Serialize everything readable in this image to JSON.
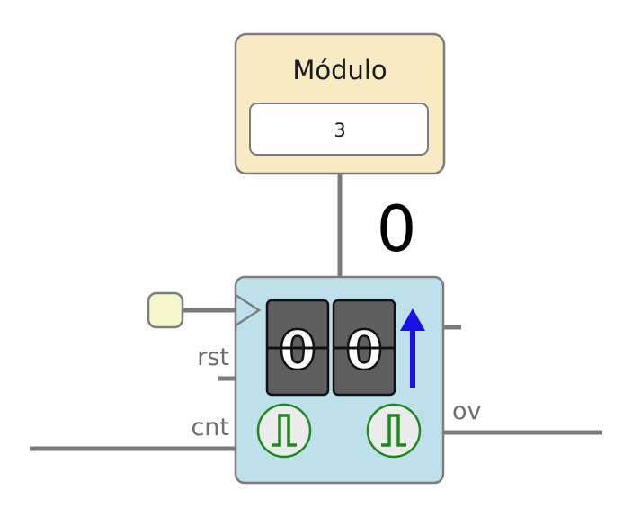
{
  "module_box": {
    "label": "Módulo",
    "value": "3",
    "fill_color": "#f8ebc4"
  },
  "count_display": "0",
  "counter": {
    "digits": [
      "0",
      "0"
    ],
    "direction": "up-arrow",
    "fill_color": "#bde0ea",
    "arrow_color": "#1a10e8",
    "pulse_color": "#1e8a1e"
  },
  "pins": {
    "rst": "rst",
    "cnt": "cnt",
    "ov": "ov"
  }
}
